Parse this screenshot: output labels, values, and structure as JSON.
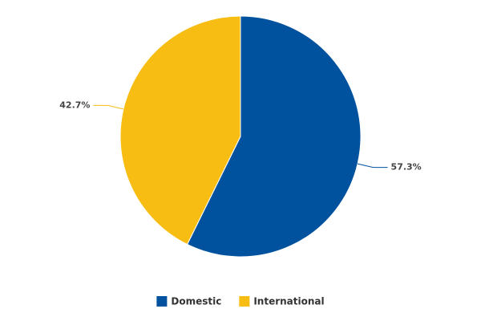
{
  "chart_data": {
    "type": "pie",
    "series": [
      {
        "name": "Domestic",
        "color": "#00519e",
        "values": [
          57.3
        ],
        "value_labels": [
          "57.3%"
        ]
      },
      {
        "name": "International",
        "color": "#f7bd13",
        "values": [
          42.7
        ],
        "value_labels": [
          "42.7%"
        ]
      }
    ],
    "legend": "bottom"
  }
}
